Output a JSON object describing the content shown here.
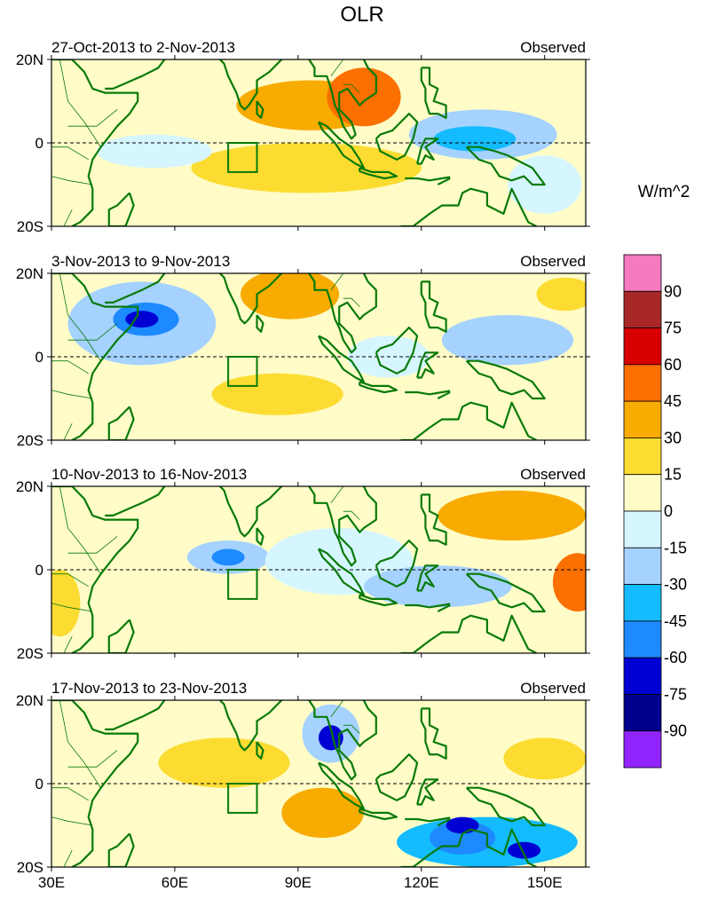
{
  "title": "OLR",
  "units": "W/m^2",
  "x_axis": {
    "ticks": [
      30,
      60,
      90,
      120,
      150
    ],
    "tick_labels": [
      "30E",
      "60E",
      "90E",
      "120E",
      "150E"
    ],
    "range": [
      30,
      160
    ]
  },
  "y_axis": {
    "ticks": [
      20,
      0,
      -20
    ],
    "tick_labels": [
      "20N",
      "0",
      "20S"
    ],
    "range": [
      -20,
      20
    ]
  },
  "colorbar": {
    "levels": [
      "90",
      "75",
      "60",
      "45",
      "30",
      "15",
      "0",
      "-15",
      "-30",
      "-45",
      "-60",
      "-75",
      "-90"
    ],
    "colors": [
      "#f77ac0",
      "#a82828",
      "#d80000",
      "#fb7000",
      "#f8ab00",
      "#fddc32",
      "#fffcc8",
      "#d6f6ff",
      "#a5d2ff",
      "#14bcff",
      "#1e8aff",
      "#0000d2",
      "#00008c",
      "#9124ff"
    ]
  },
  "panels": [
    {
      "period": "27-Oct-2013 to 2-Nov-2013",
      "label": "Observed",
      "anomalies": [
        {
          "lon": 93,
          "lat": 9,
          "rx": 18,
          "ry": 6,
          "v": 30
        },
        {
          "lon": 106,
          "lat": 11,
          "rx": 9,
          "ry": 7,
          "v": 45
        },
        {
          "lon": 92,
          "lat": -6,
          "rx": 28,
          "ry": 6,
          "v": 15
        },
        {
          "lon": 135,
          "lat": 2,
          "rx": 18,
          "ry": 6,
          "v": -30
        },
        {
          "lon": 133,
          "lat": 1,
          "rx": 10,
          "ry": 3,
          "v": -45
        },
        {
          "lon": 55,
          "lat": -2,
          "rx": 14,
          "ry": 4,
          "v": -15
        },
        {
          "lon": 150,
          "lat": -10,
          "rx": 9,
          "ry": 7,
          "v": -15
        }
      ]
    },
    {
      "period": "3-Nov-2013 to 9-Nov-2013",
      "label": "Observed",
      "anomalies": [
        {
          "lon": 52,
          "lat": 8,
          "rx": 18,
          "ry": 10,
          "v": -30
        },
        {
          "lon": 53,
          "lat": 9,
          "rx": 8,
          "ry": 4,
          "v": -60
        },
        {
          "lon": 52,
          "lat": 9,
          "rx": 4,
          "ry": 2,
          "v": -75
        },
        {
          "lon": 88,
          "lat": 15,
          "rx": 12,
          "ry": 6,
          "v": 30
        },
        {
          "lon": 85,
          "lat": -9,
          "rx": 16,
          "ry": 5,
          "v": 15
        },
        {
          "lon": 141,
          "lat": 4,
          "rx": 16,
          "ry": 6,
          "v": -30
        },
        {
          "lon": 112,
          "lat": 0,
          "rx": 10,
          "ry": 5,
          "v": -15
        },
        {
          "lon": 155,
          "lat": 15,
          "rx": 7,
          "ry": 4,
          "v": 15
        }
      ]
    },
    {
      "period": "10-Nov-2013 to 16-Nov-2013",
      "label": "Observed",
      "anomalies": [
        {
          "lon": 142,
          "lat": 13,
          "rx": 18,
          "ry": 6,
          "v": 30
        },
        {
          "lon": 158,
          "lat": -3,
          "rx": 6,
          "ry": 7,
          "v": 45
        },
        {
          "lon": 73,
          "lat": 3,
          "rx": 10,
          "ry": 4,
          "v": -30
        },
        {
          "lon": 73,
          "lat": 3,
          "rx": 4,
          "ry": 2,
          "v": -60
        },
        {
          "lon": 100,
          "lat": 2,
          "rx": 18,
          "ry": 8,
          "v": -15
        },
        {
          "lon": 124,
          "lat": -4,
          "rx": 18,
          "ry": 5,
          "v": -30
        },
        {
          "lon": 32,
          "lat": -8,
          "rx": 5,
          "ry": 8,
          "v": 15
        }
      ]
    },
    {
      "period": "17-Nov-2013 to 23-Nov-2013",
      "label": "Observed",
      "anomalies": [
        {
          "lon": 72,
          "lat": 5,
          "rx": 16,
          "ry": 6,
          "v": 15
        },
        {
          "lon": 96,
          "lat": -7,
          "rx": 10,
          "ry": 6,
          "v": 30
        },
        {
          "lon": 98,
          "lat": 12,
          "rx": 7,
          "ry": 7,
          "v": -30
        },
        {
          "lon": 98,
          "lat": 11,
          "rx": 3,
          "ry": 3,
          "v": -75
        },
        {
          "lon": 136,
          "lat": -14,
          "rx": 22,
          "ry": 6,
          "v": -45
        },
        {
          "lon": 130,
          "lat": -13,
          "rx": 8,
          "ry": 4,
          "v": -60
        },
        {
          "lon": 145,
          "lat": -16,
          "rx": 4,
          "ry": 2,
          "v": -75
        },
        {
          "lon": 130,
          "lat": -10,
          "rx": 4,
          "ry": 2,
          "v": -75
        },
        {
          "lon": 150,
          "lat": 6,
          "rx": 10,
          "ry": 5,
          "v": 15
        }
      ]
    }
  ],
  "marked_box": {
    "lon_min": 73,
    "lon_max": 80,
    "lat_min": -7,
    "lat_max": 0
  },
  "colors": {
    "land_outline": "#087a08",
    "equator": "#000000",
    "frame": "#000000"
  }
}
